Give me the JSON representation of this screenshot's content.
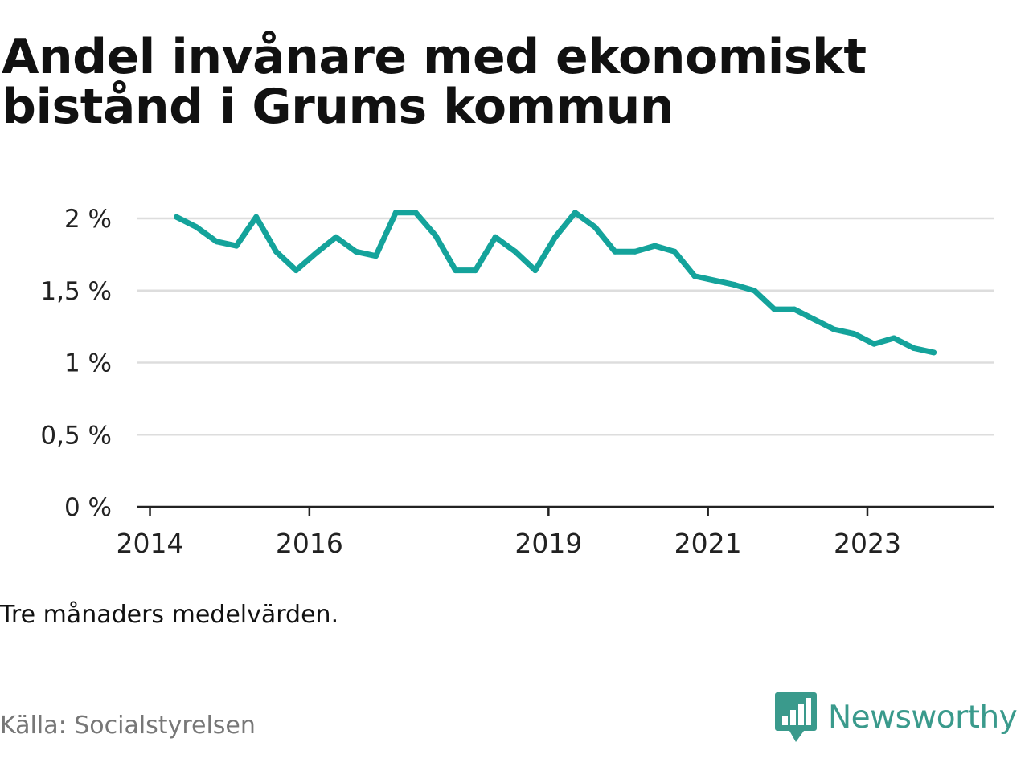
{
  "colors": {
    "line": "#14a39b",
    "grid": "#dddddd",
    "axis": "#222222",
    "title": "#111111",
    "source": "#777777",
    "brand": "#3a9a8c"
  },
  "header": {
    "title": "Andel invånare med ekonomiskt bistånd i Grums kommun"
  },
  "footer": {
    "note": "Tre månaders medelvärden.",
    "source": "Källa: Socialstyrelsen",
    "brand_name": "Newsworthy",
    "brand_icon": "bar-chart-speech-bubble-icon"
  },
  "chart_data": {
    "type": "line",
    "title": "Andel invånare med ekonomiskt bistånd i Grums kommun",
    "xlabel": "",
    "ylabel": "",
    "x": [
      "2014-05",
      "2014-08",
      "2014-11",
      "2015-02",
      "2015-05",
      "2015-08",
      "2015-11",
      "2016-02",
      "2016-05",
      "2016-08",
      "2016-11",
      "2017-02",
      "2017-05",
      "2017-08",
      "2017-11",
      "2018-02",
      "2018-05",
      "2018-08",
      "2018-11",
      "2019-02",
      "2019-05",
      "2019-08",
      "2019-11",
      "2020-02",
      "2020-05",
      "2020-08",
      "2020-11",
      "2021-02",
      "2021-05",
      "2021-08",
      "2021-11",
      "2022-02",
      "2022-05",
      "2022-08",
      "2022-11",
      "2023-02",
      "2023-05",
      "2023-08",
      "2023-11"
    ],
    "series": [
      {
        "values": [
          2.01,
          1.94,
          1.84,
          1.81,
          2.01,
          1.77,
          1.64,
          1.76,
          1.87,
          1.77,
          1.74,
          2.04,
          2.04,
          1.88,
          1.64,
          1.64,
          1.87,
          1.77,
          1.64,
          1.87,
          2.04,
          1.94,
          1.77,
          1.77,
          1.81,
          1.77,
          1.6,
          1.57,
          1.54,
          1.5,
          1.37,
          1.37,
          1.3,
          1.23,
          1.2,
          1.13,
          1.17,
          1.1,
          1.07
        ]
      }
    ],
    "y_ticks": [
      {
        "value": 0,
        "label": "0 %"
      },
      {
        "value": 0.5,
        "label": "0,5 %"
      },
      {
        "value": 1,
        "label": "1 %"
      },
      {
        "value": 1.5,
        "label": "1,5 %"
      },
      {
        "value": 2,
        "label": "2 %"
      }
    ],
    "x_ticks": [
      {
        "value": "2014-01",
        "label": "2014"
      },
      {
        "value": "2016-01",
        "label": "2016"
      },
      {
        "value": "2019-01",
        "label": "2019"
      },
      {
        "value": "2021-01",
        "label": "2021"
      },
      {
        "value": "2023-01",
        "label": "2023"
      }
    ],
    "x_range": [
      "2013-11",
      "2024-08"
    ],
    "ylim": [
      0,
      2
    ],
    "grid": true,
    "legend": "none"
  }
}
